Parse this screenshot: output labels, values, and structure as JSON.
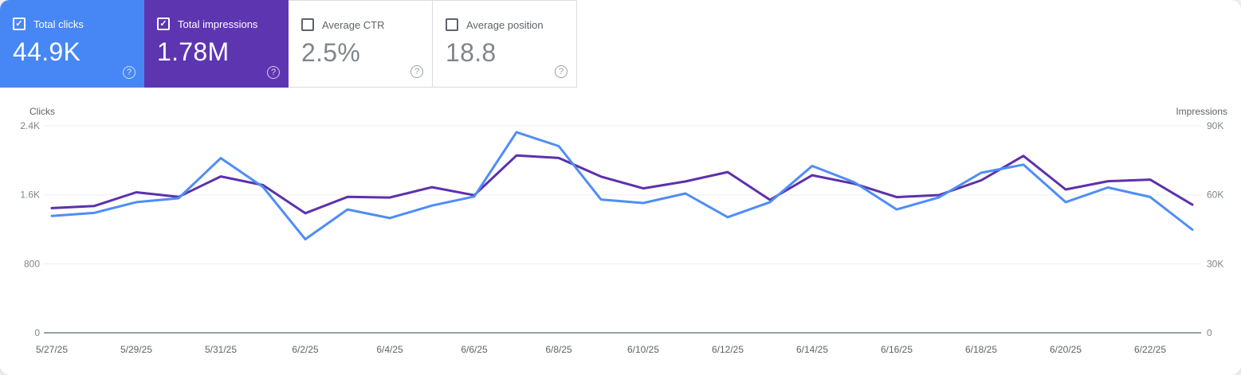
{
  "cards": [
    {
      "label": "Total clicks",
      "value": "44.9K",
      "selected": true,
      "color": "#4787f5"
    },
    {
      "label": "Total impressions",
      "value": "1.78M",
      "selected": true,
      "color": "#5e35b1"
    },
    {
      "label": "Average CTR",
      "value": "2.5%",
      "selected": false,
      "color": ""
    },
    {
      "label": "Average position",
      "value": "18.8",
      "selected": false,
      "color": ""
    }
  ],
  "icons": {
    "check": "✓",
    "help": "?"
  },
  "chart_data": {
    "type": "line",
    "dates": [
      "5/27/25",
      "5/28/25",
      "5/29/25",
      "5/30/25",
      "5/31/25",
      "6/1/25",
      "6/2/25",
      "6/3/25",
      "6/4/25",
      "6/5/25",
      "6/6/25",
      "6/7/25",
      "6/8/25",
      "6/9/25",
      "6/10/25",
      "6/11/25",
      "6/12/25",
      "6/13/25",
      "6/14/25",
      "6/15/25",
      "6/16/25",
      "6/17/25",
      "6/18/25",
      "6/19/25",
      "6/20/25",
      "6/21/25",
      "6/22/25",
      "6/23/25"
    ],
    "x_label_every": 2,
    "left_axis": {
      "title": "Clicks",
      "max": 2400,
      "ticks": [
        {
          "label": "0",
          "value": 0
        },
        {
          "label": "800",
          "value": 800
        },
        {
          "label": "1.6K",
          "value": 1600
        },
        {
          "label": "2.4K",
          "value": 2400
        }
      ]
    },
    "right_axis": {
      "title": "Impressions",
      "max": 90000,
      "ticks": [
        {
          "label": "0",
          "value": 0
        },
        {
          "label": "30K",
          "value": 30000
        },
        {
          "label": "60K",
          "value": 60000
        },
        {
          "label": "90K",
          "value": 90000
        }
      ]
    },
    "series": [
      {
        "name": "Total clicks",
        "axis": "left",
        "color": "#4f8df7",
        "values": [
          1355,
          1390,
          1515,
          1560,
          2025,
          1690,
          1085,
          1430,
          1330,
          1475,
          1580,
          2325,
          2165,
          1545,
          1505,
          1615,
          1340,
          1515,
          1935,
          1745,
          1430,
          1570,
          1855,
          1950,
          1515,
          1685,
          1575,
          1195
        ]
      },
      {
        "name": "Total impressions",
        "axis": "right",
        "color": "#5c31ac",
        "values": [
          54200,
          55100,
          61100,
          59100,
          68000,
          64200,
          52000,
          59100,
          58800,
          63300,
          59800,
          77100,
          76000,
          67900,
          62800,
          65800,
          69900,
          57800,
          68500,
          64800,
          59000,
          59900,
          66300,
          76900,
          62300,
          65900,
          66600,
          55700
        ]
      }
    ],
    "grid_on": true,
    "grid_color": "#ebedf0",
    "axis_line_color": "#9aa0a6",
    "legend_position": "none"
  }
}
